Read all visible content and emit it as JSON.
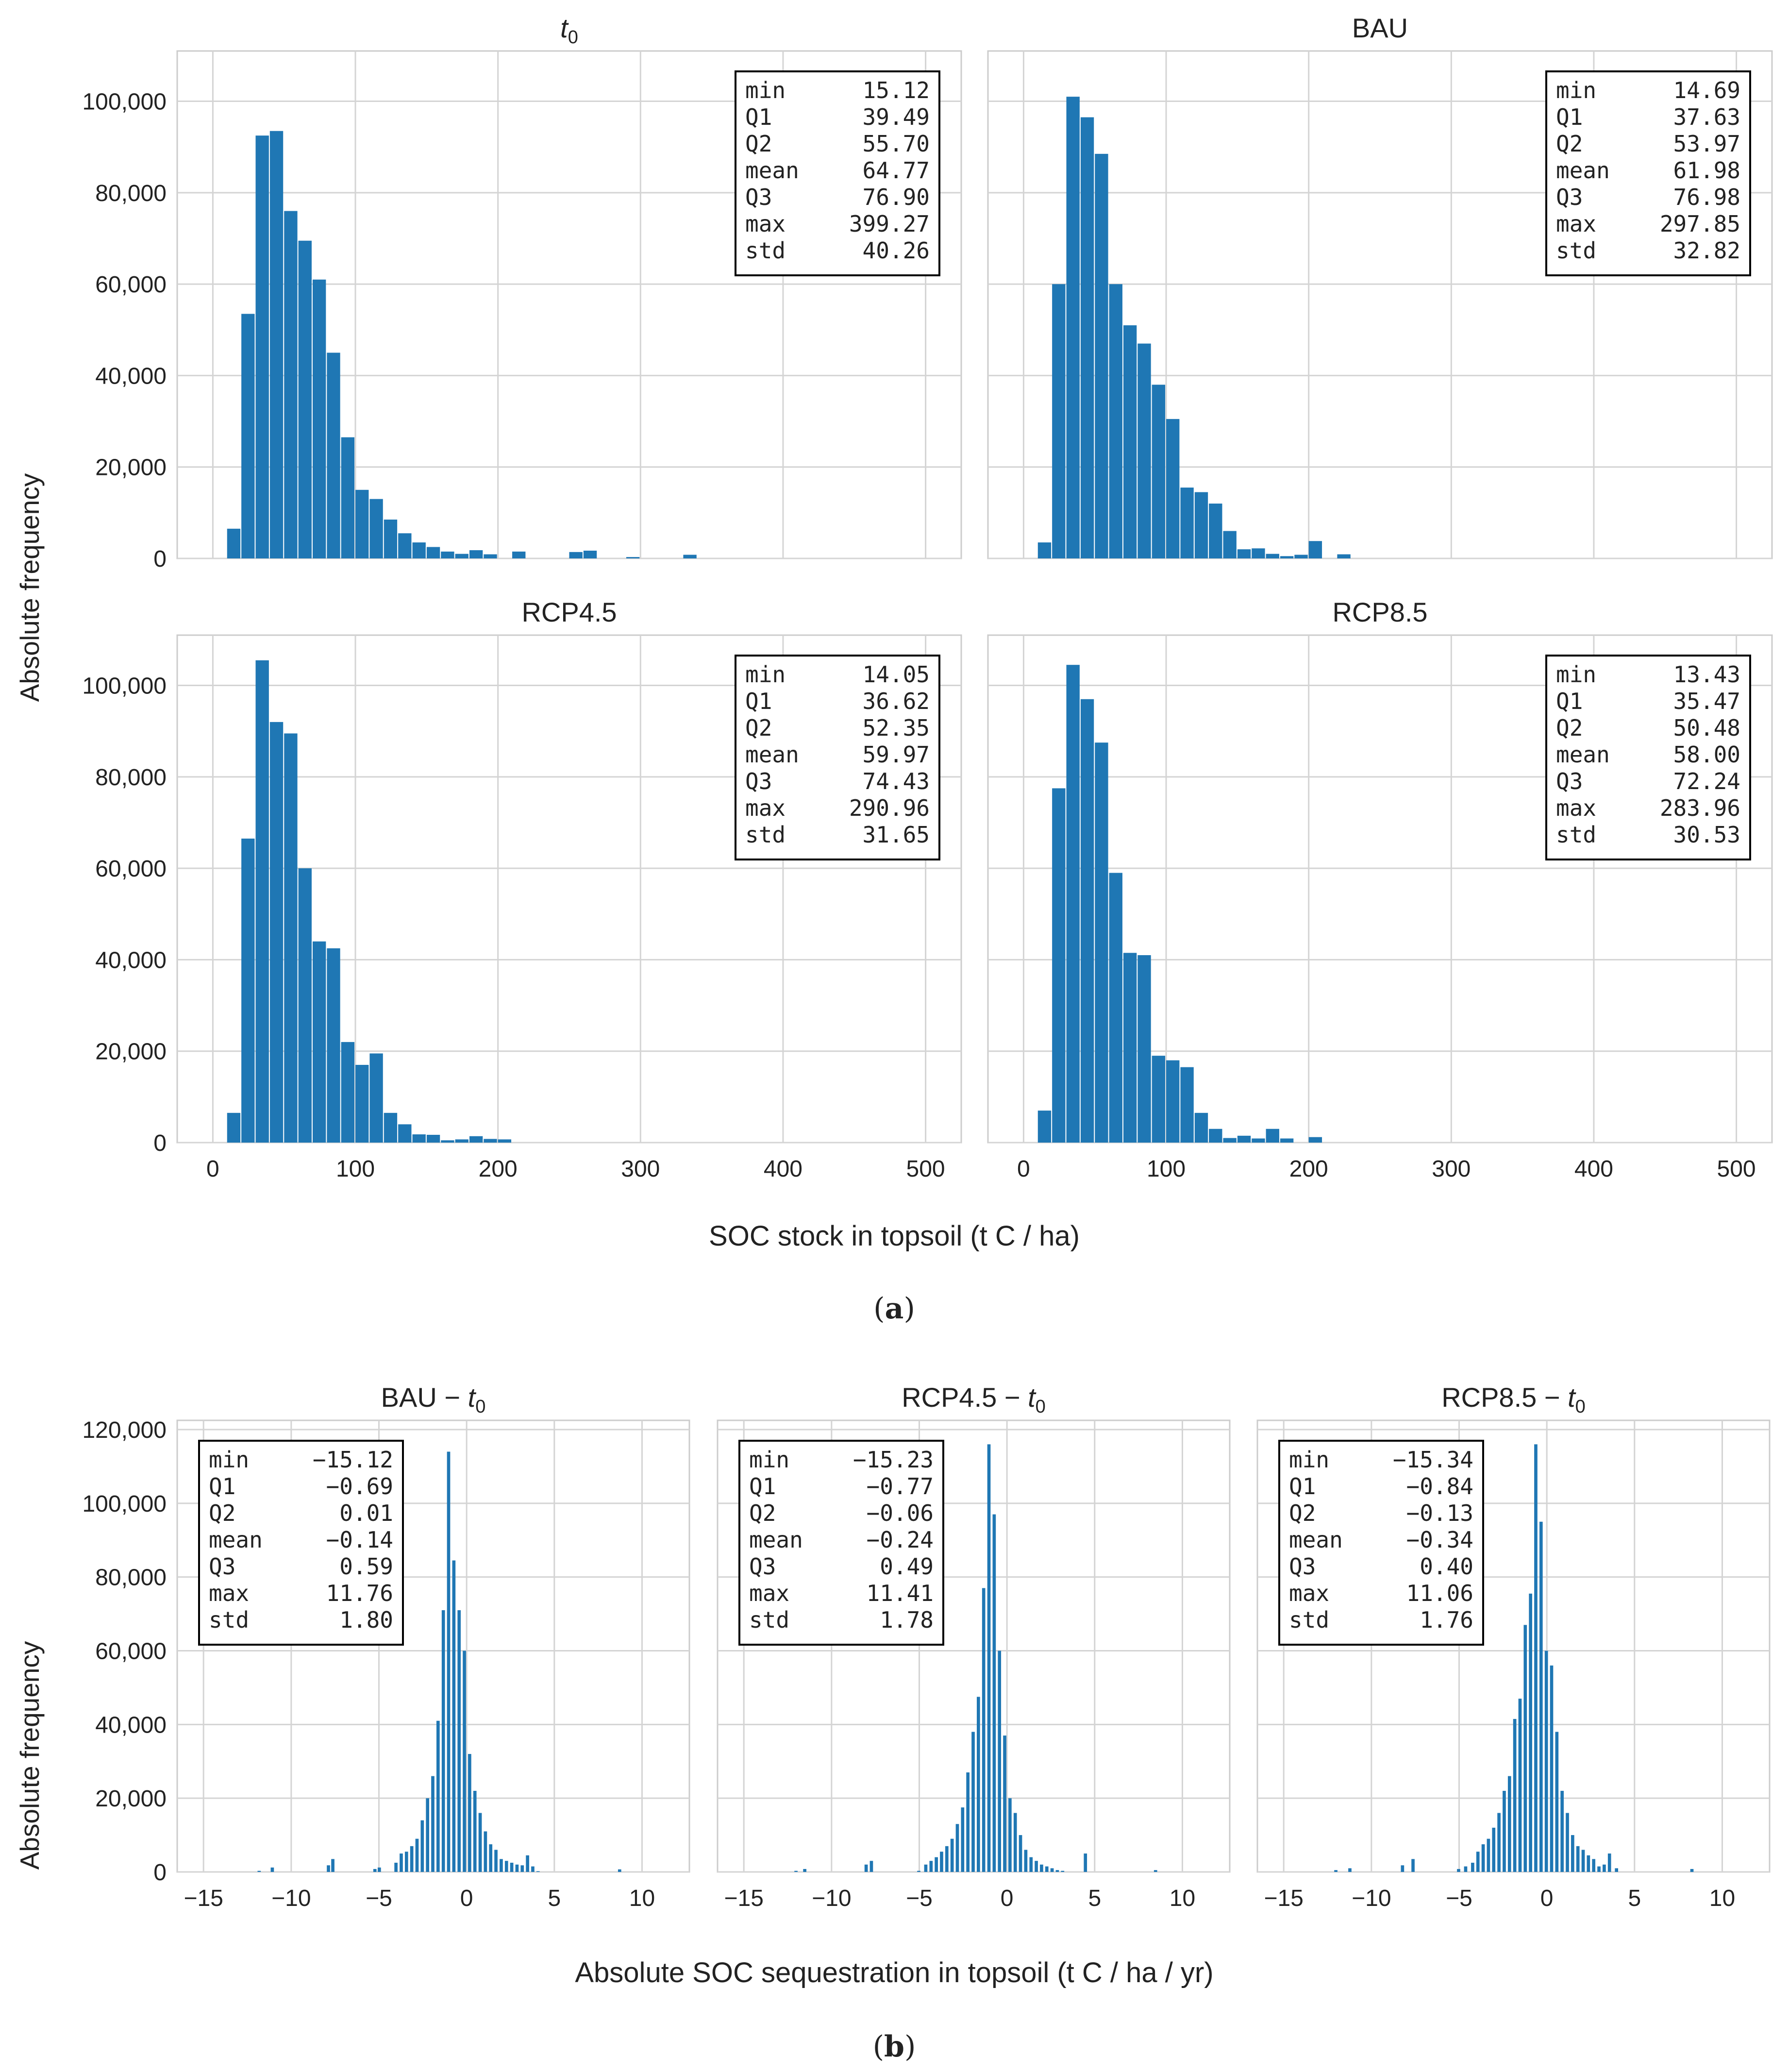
{
  "figure": {
    "y_axis_label": "Absolute frequency",
    "panel_a_xlabel": "SOC stock in topsoil (t C / ha)",
    "panel_b_xlabel": "Absolute SOC sequestration in topsoil (t C / ha / yr)",
    "caption_a": "a",
    "caption_b": "b",
    "bar_color": "#1f77b4",
    "grid_color": "#d4d4d4"
  },
  "chart_data": [
    {
      "type": "bar",
      "title": "t",
      "title_sub": "0",
      "xlabel": "SOC stock in topsoil (t C / ha)",
      "ylabel": "Absolute frequency",
      "xlim": [
        -25,
        525
      ],
      "ylim": [
        0,
        111000
      ],
      "xticks": [
        0,
        100,
        200,
        300,
        400,
        500
      ],
      "yticks": [
        0,
        20000,
        40000,
        60000,
        80000,
        100000
      ],
      "bin_start": 10,
      "bin_width": 10,
      "values": [
        6500,
        53500,
        92500,
        93500,
        76000,
        69500,
        61000,
        45000,
        26500,
        15000,
        13000,
        8500,
        5500,
        3500,
        2500,
        1500,
        1000,
        1800,
        900,
        0,
        1500,
        0,
        0,
        0,
        1400,
        1700,
        0,
        0,
        300,
        0,
        0,
        0,
        800
      ],
      "stats": [
        [
          "min",
          "15.12"
        ],
        [
          "Q1",
          "39.49"
        ],
        [
          "Q2",
          "55.70"
        ],
        [
          "mean",
          "64.77"
        ],
        [
          "Q3",
          "76.90"
        ],
        [
          "max",
          "399.27"
        ],
        [
          "std",
          "40.26"
        ]
      ]
    },
    {
      "type": "bar",
      "title": "BAU",
      "title_sub": "",
      "xlabel": "SOC stock in topsoil (t C / ha)",
      "ylabel": "Absolute frequency",
      "xlim": [
        -25,
        525
      ],
      "ylim": [
        0,
        111000
      ],
      "xticks": [
        0,
        100,
        200,
        300,
        400,
        500
      ],
      "yticks": [
        0,
        20000,
        40000,
        60000,
        80000,
        100000
      ],
      "bin_start": 10,
      "bin_width": 10,
      "values": [
        3500,
        60000,
        101000,
        96500,
        88500,
        60000,
        51000,
        47000,
        38000,
        30500,
        15500,
        14500,
        12000,
        6000,
        2000,
        2200,
        1000,
        500,
        800,
        3800,
        0,
        900
      ],
      "stats": [
        [
          "min",
          "14.69"
        ],
        [
          "Q1",
          "37.63"
        ],
        [
          "Q2",
          "53.97"
        ],
        [
          "mean",
          "61.98"
        ],
        [
          "Q3",
          "76.98"
        ],
        [
          "max",
          "297.85"
        ],
        [
          "std",
          "32.82"
        ]
      ]
    },
    {
      "type": "bar",
      "title": "RCP4.5",
      "title_sub": "",
      "xlabel": "SOC stock in topsoil (t C / ha)",
      "ylabel": "Absolute frequency",
      "xlim": [
        -25,
        525
      ],
      "ylim": [
        0,
        111000
      ],
      "xticks": [
        0,
        100,
        200,
        300,
        400,
        500
      ],
      "yticks": [
        0,
        20000,
        40000,
        60000,
        80000,
        100000
      ],
      "bin_start": 10,
      "bin_width": 10,
      "values": [
        6500,
        66500,
        105500,
        92000,
        89500,
        60000,
        44000,
        42500,
        22000,
        17000,
        19500,
        6500,
        4000,
        1800,
        1700,
        500,
        700,
        1400,
        800,
        700
      ],
      "stats": [
        [
          "min",
          "14.05"
        ],
        [
          "Q1",
          "36.62"
        ],
        [
          "Q2",
          "52.35"
        ],
        [
          "mean",
          "59.97"
        ],
        [
          "Q3",
          "74.43"
        ],
        [
          "max",
          "290.96"
        ],
        [
          "std",
          "31.65"
        ]
      ]
    },
    {
      "type": "bar",
      "title": "RCP8.5",
      "title_sub": "",
      "xlabel": "SOC stock in topsoil (t C / ha)",
      "ylabel": "Absolute frequency",
      "xlim": [
        -25,
        525
      ],
      "ylim": [
        0,
        111000
      ],
      "xticks": [
        0,
        100,
        200,
        300,
        400,
        500
      ],
      "yticks": [
        0,
        20000,
        40000,
        60000,
        80000,
        100000
      ],
      "bin_start": 10,
      "bin_width": 10,
      "values": [
        7000,
        77500,
        104500,
        97000,
        87500,
        59000,
        41500,
        41000,
        19000,
        18000,
        16500,
        6500,
        3000,
        1000,
        1500,
        900,
        3000,
        900,
        0,
        1200
      ],
      "stats": [
        [
          "min",
          "13.43"
        ],
        [
          "Q1",
          "35.47"
        ],
        [
          "Q2",
          "50.48"
        ],
        [
          "mean",
          "58.00"
        ],
        [
          "Q3",
          "72.24"
        ],
        [
          "max",
          "283.96"
        ],
        [
          "std",
          "30.53"
        ]
      ]
    },
    {
      "type": "bar",
      "title": "BAU − t",
      "title_sub": "0",
      "xlabel": "Absolute SOC sequestration in topsoil (t C / ha / yr)",
      "ylabel": "Absolute frequency",
      "xlim": [
        -16.5,
        12.7
      ],
      "ylim": [
        0,
        122500
      ],
      "xticks": [
        -15,
        -10,
        -5,
        0,
        5,
        10
      ],
      "yticks": [
        0,
        20000,
        40000,
        60000,
        80000,
        100000,
        120000
      ],
      "bin_centers": [
        -11.8,
        -11.05,
        -7.85,
        -7.6,
        -5.2,
        -4.95,
        -4.0,
        -3.7,
        -3.4,
        -3.1,
        -2.8,
        -2.5,
        -2.2,
        -1.9,
        -1.6,
        -1.3,
        -1.0,
        -0.7,
        -0.4,
        -0.1,
        0.2,
        0.5,
        0.8,
        1.1,
        1.4,
        1.7,
        2.0,
        2.3,
        2.6,
        2.9,
        3.2,
        3.5,
        3.8,
        4.1,
        8.75
      ],
      "bin_width": 0.24,
      "values": [
        300,
        1200,
        1800,
        3500,
        800,
        1200,
        2500,
        5000,
        5500,
        7000,
        9000,
        14000,
        20000,
        26000,
        41000,
        71000,
        114000,
        84500,
        71000,
        60000,
        32000,
        22000,
        16000,
        11000,
        7500,
        6000,
        3500,
        3000,
        2500,
        2000,
        1800,
        4500,
        1500,
        200,
        700
      ],
      "stats": [
        [
          "min",
          "−15.12"
        ],
        [
          "Q1",
          "−0.69"
        ],
        [
          "Q2",
          "0.01"
        ],
        [
          "mean",
          "−0.14"
        ],
        [
          "Q3",
          "0.59"
        ],
        [
          "max",
          "11.76"
        ],
        [
          "std",
          "1.80"
        ]
      ]
    },
    {
      "type": "bar",
      "title": "RCP4.5 − t",
      "title_sub": "0",
      "xlabel": "Absolute SOC sequestration in topsoil (t C / ha / yr)",
      "ylabel": "Absolute frequency",
      "xlim": [
        -16.5,
        12.7
      ],
      "ylim": [
        0,
        122500
      ],
      "xticks": [
        -15,
        -10,
        -5,
        0,
        5,
        10
      ],
      "yticks": [
        0,
        20000,
        40000,
        60000,
        80000,
        100000,
        120000
      ],
      "bin_centers": [
        -12.0,
        -11.5,
        -8.0,
        -7.7,
        -5.0,
        -4.6,
        -4.3,
        -4.0,
        -3.7,
        -3.4,
        -3.1,
        -2.8,
        -2.5,
        -2.2,
        -1.9,
        -1.6,
        -1.3,
        -1.0,
        -0.7,
        -0.4,
        -0.1,
        0.2,
        0.5,
        0.8,
        1.1,
        1.4,
        1.7,
        2.0,
        2.3,
        2.6,
        2.9,
        3.2,
        4.5,
        8.5
      ],
      "bin_width": 0.24,
      "values": [
        300,
        800,
        2000,
        3000,
        300,
        2000,
        3000,
        4000,
        5500,
        7000,
        9000,
        13000,
        17500,
        27000,
        38000,
        47500,
        77000,
        116000,
        97000,
        60000,
        37000,
        20000,
        16000,
        10000,
        6000,
        4000,
        3000,
        2000,
        1500,
        1000,
        500,
        300,
        5000,
        500
      ],
      "stats": [
        [
          "min",
          "−15.23"
        ],
        [
          "Q1",
          "−0.77"
        ],
        [
          "Q2",
          "−0.06"
        ],
        [
          "mean",
          "−0.24"
        ],
        [
          "Q3",
          "0.49"
        ],
        [
          "max",
          "11.41"
        ],
        [
          "std",
          "1.78"
        ]
      ]
    },
    {
      "type": "bar",
      "title": "RCP8.5 − t",
      "title_sub": "0",
      "xlabel": "Absolute SOC sequestration in topsoil (t C / ha / yr)",
      "ylabel": "Absolute frequency",
      "xlim": [
        -16.5,
        12.7
      ],
      "ylim": [
        0,
        122500
      ],
      "xticks": [
        -15,
        -10,
        -5,
        0,
        5,
        10
      ],
      "yticks": [
        0,
        20000,
        40000,
        60000,
        80000,
        100000,
        120000
      ],
      "bin_centers": [
        -12.0,
        -11.2,
        -8.2,
        -7.6,
        -5.0,
        -4.6,
        -4.2,
        -3.9,
        -3.6,
        -3.3,
        -3.0,
        -2.7,
        -2.4,
        -2.1,
        -1.8,
        -1.5,
        -1.2,
        -0.9,
        -0.6,
        -0.3,
        0.0,
        0.3,
        0.6,
        0.9,
        1.2,
        1.5,
        1.8,
        2.1,
        2.4,
        2.7,
        3.0,
        3.3,
        3.6,
        4.0,
        8.3
      ],
      "bin_width": 0.24,
      "values": [
        500,
        1000,
        1800,
        3500,
        800,
        1500,
        2500,
        5500,
        7500,
        9000,
        12000,
        16000,
        22000,
        26000,
        41500,
        47000,
        67000,
        75500,
        116000,
        95000,
        60000,
        56000,
        38000,
        22000,
        16000,
        10000,
        7000,
        6000,
        4500,
        3500,
        1500,
        2000,
        5000,
        1000,
        800
      ],
      "stats": [
        [
          "min",
          "−15.34"
        ],
        [
          "Q1",
          "−0.84"
        ],
        [
          "Q2",
          "−0.13"
        ],
        [
          "mean",
          "−0.34"
        ],
        [
          "Q3",
          "0.40"
        ],
        [
          "max",
          "11.06"
        ],
        [
          "std",
          "1.76"
        ]
      ]
    }
  ]
}
